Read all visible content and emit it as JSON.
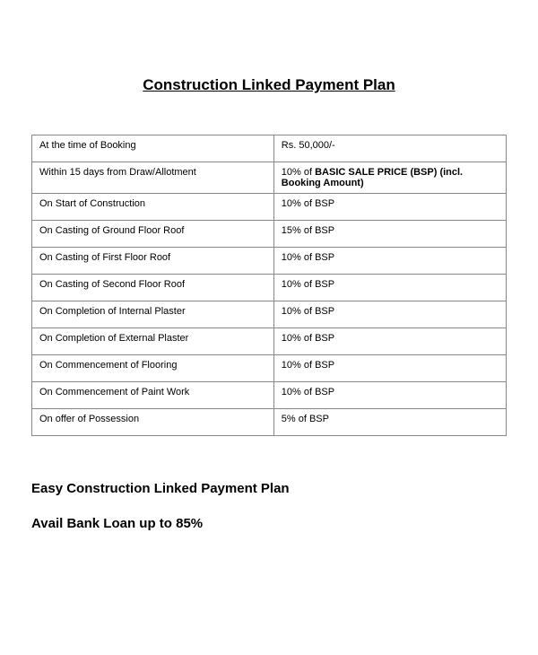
{
  "title": "Construction Linked Payment Plan",
  "table": {
    "rows": [
      {
        "stage": "At the time of Booking",
        "amount": "Rs. 50,000/-",
        "bold_amount": false
      },
      {
        "stage": "Within 15 days from Draw/Allotment",
        "amount_prefix": "10% of ",
        "amount_bold": "BASIC SALE PRICE (BSP) (incl. Booking Amount)",
        "bold_amount": true
      },
      {
        "stage": "On Start of Construction",
        "amount": "10%  of BSP",
        "bold_amount": false
      },
      {
        "stage": "On Casting of  Ground Floor Roof",
        "amount": "15% of BSP",
        "bold_amount": false
      },
      {
        "stage": "On Casting of  First Floor Roof",
        "amount": "10% of BSP",
        "bold_amount": false
      },
      {
        "stage": "On Casting of  Second Floor Roof",
        "amount": "10% of BSP",
        "bold_amount": false
      },
      {
        "stage": "On Completion of Internal Plaster",
        "amount": "10% of BSP",
        "bold_amount": false
      },
      {
        "stage": "On Completion of External Plaster",
        "amount": "10% of BSP",
        "bold_amount": false
      },
      {
        "stage": "On Commencement of Flooring",
        "amount": "10% of BSP",
        "bold_amount": false
      },
      {
        "stage": "On Commencement of Paint Work",
        "amount": "10% of BSP",
        "bold_amount": false
      },
      {
        "stage": "On offer of Possession",
        "amount": "5% of BSP",
        "bold_amount": false
      }
    ]
  },
  "subtitle": "Easy Construction Linked Payment Plan",
  "loan_text": "Avail Bank Loan up to 85%"
}
